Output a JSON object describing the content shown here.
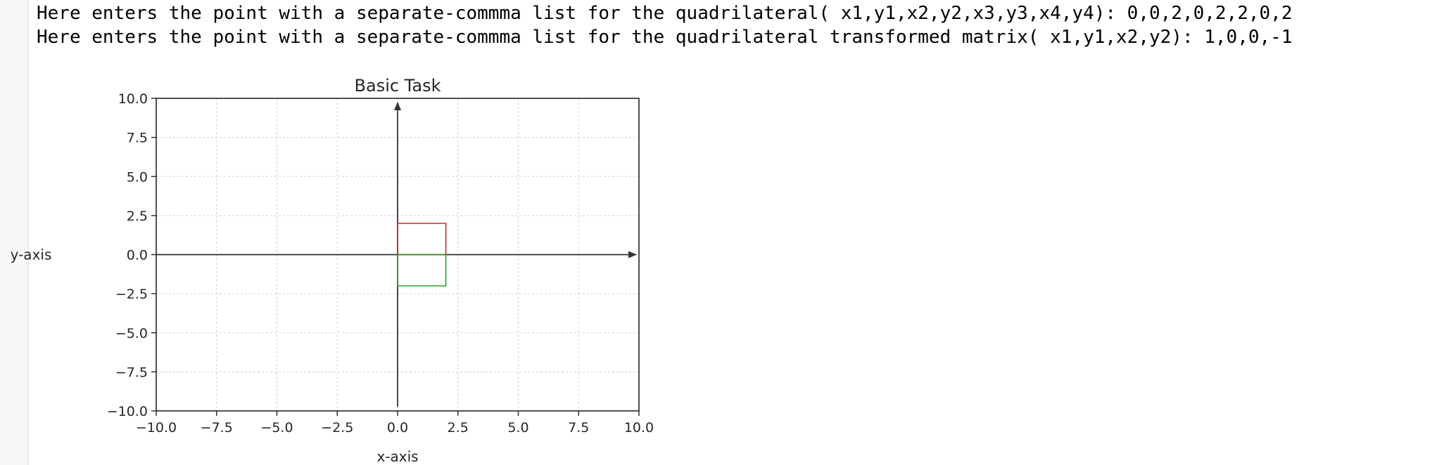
{
  "output_lines": [
    "Here enters the point with a separate-commma list for the quadrilateral( x1,y1,x2,y2,x3,y3,x4,y4): 0,0,2,0,2,2,0,2",
    "Here enters the point with a separate-commma list for the quadrilateral transformed matrix( x1,y1,x2,y2): 1,0,0,-1"
  ],
  "chart_data": {
    "type": "line",
    "title": "Basic Task",
    "xlabel": "x-axis",
    "ylabel": "y-axis",
    "xlim": [
      -10,
      10
    ],
    "ylim": [
      -10,
      10
    ],
    "xticks": [
      -10.0,
      -7.5,
      -5.0,
      -2.5,
      0.0,
      2.5,
      5.0,
      7.5,
      10.0
    ],
    "yticks": [
      -10.0,
      -7.5,
      -5.0,
      -2.5,
      0.0,
      2.5,
      5.0,
      7.5,
      10.0
    ],
    "xtick_labels": [
      "−10.0",
      "−7.5",
      "−5.0",
      "−2.5",
      "0.0",
      "2.5",
      "5.0",
      "7.5",
      "10.0"
    ],
    "ytick_labels": [
      "−10.0",
      "−7.5",
      "−5.0",
      "−2.5",
      "0.0",
      "2.5",
      "5.0",
      "7.5",
      "10.0"
    ],
    "grid": true,
    "origin_arrows": true,
    "series": [
      {
        "color": "#d62728",
        "points": [
          [
            0,
            0
          ],
          [
            2,
            0
          ],
          [
            2,
            2
          ],
          [
            0,
            2
          ],
          [
            0,
            0
          ]
        ]
      },
      {
        "color": "#2ca02c",
        "points": [
          [
            0,
            0
          ],
          [
            2,
            0
          ],
          [
            2,
            -2
          ],
          [
            0,
            -2
          ],
          [
            0,
            0
          ]
        ]
      }
    ]
  }
}
